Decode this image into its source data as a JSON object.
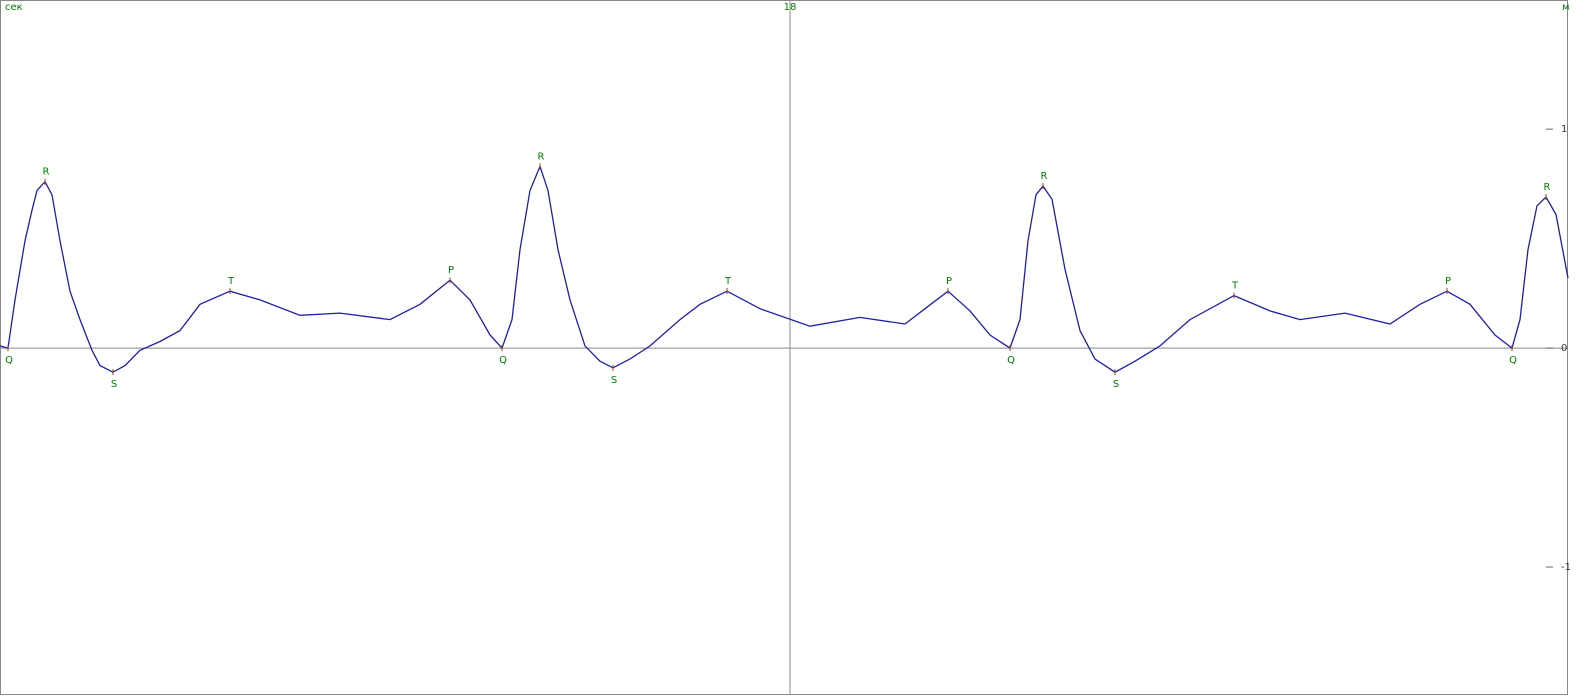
{
  "chart_data": {
    "type": "line",
    "x_label": "сек",
    "y_label": "м",
    "xlim": [
      10.1,
      25.78
    ],
    "ylim": [
      -1.58,
      1.59
    ],
    "xticks": [
      18
    ],
    "yticks": [
      1,
      0,
      -1
    ],
    "series": [
      {
        "color": "#1f1fa8",
        "x": [
          10.1,
          10.18,
          10.25,
          10.35,
          10.42,
          10.47,
          10.55,
          10.62,
          10.7,
          10.8,
          10.9,
          11.02,
          11.1,
          11.23,
          11.35,
          11.5,
          11.7,
          11.9,
          12.1,
          12.4,
          12.7,
          13.1,
          13.5,
          14.0,
          14.3,
          14.6,
          14.8,
          15.0,
          15.12,
          15.22,
          15.3,
          15.4,
          15.5,
          15.58,
          15.68,
          15.8,
          15.95,
          16.1,
          16.23,
          16.4,
          16.6,
          16.9,
          17.1,
          17.37,
          17.7,
          18.2,
          18.7,
          19.15,
          19.35,
          19.58,
          19.8,
          20.0,
          20.2,
          20.3,
          20.38,
          20.46,
          20.53,
          20.62,
          20.75,
          20.9,
          21.05,
          21.25,
          21.45,
          21.7,
          22.0,
          22.44,
          22.8,
          23.1,
          23.55,
          24.0,
          24.3,
          24.57,
          24.8,
          25.05,
          25.22,
          25.3,
          25.38,
          25.47,
          25.56,
          25.66,
          25.78
        ],
        "values": [
          0.01,
          0,
          0.22,
          0.49,
          0.63,
          0.72,
          0.76,
          0.7,
          0.49,
          0.26,
          0.13,
          -0.01,
          -0.08,
          -0.11,
          -0.08,
          -0.01,
          0.03,
          0.08,
          0.2,
          0.26,
          0.22,
          0.15,
          0.16,
          0.13,
          0.2,
          0.31,
          0.22,
          0.06,
          0,
          0.13,
          0.45,
          0.72,
          0.83,
          0.72,
          0.45,
          0.22,
          0.01,
          -0.06,
          -0.09,
          -0.05,
          0.01,
          0.13,
          0.2,
          0.26,
          0.18,
          0.1,
          0.14,
          0.11,
          0.18,
          0.26,
          0.17,
          0.06,
          0,
          0.13,
          0.49,
          0.7,
          0.74,
          0.68,
          0.36,
          0.08,
          -0.05,
          -0.11,
          -0.06,
          0.01,
          0.13,
          0.24,
          0.17,
          0.13,
          0.16,
          0.11,
          0.2,
          0.26,
          0.2,
          0.06,
          0,
          0.13,
          0.45,
          0.65,
          0.69,
          0.61,
          0.32
        ]
      }
    ],
    "annotations": [
      {
        "text": "Q",
        "x": 10.18,
        "y": 0
      },
      {
        "text": "R",
        "x": 10.55,
        "y": 0.76
      },
      {
        "text": "S",
        "x": 11.23,
        "y": -0.11
      },
      {
        "text": "T",
        "x": 12.4,
        "y": 0.26
      },
      {
        "text": "P",
        "x": 14.6,
        "y": 0.31
      },
      {
        "text": "Q",
        "x": 15.12,
        "y": 0
      },
      {
        "text": "R",
        "x": 15.5,
        "y": 0.83
      },
      {
        "text": "S",
        "x": 16.23,
        "y": -0.09
      },
      {
        "text": "T",
        "x": 17.37,
        "y": 0.26
      },
      {
        "text": "P",
        "x": 19.58,
        "y": 0.26
      },
      {
        "text": "Q",
        "x": 20.2,
        "y": 0
      },
      {
        "text": "R",
        "x": 20.53,
        "y": 0.74
      },
      {
        "text": "S",
        "x": 21.25,
        "y": -0.11
      },
      {
        "text": "T",
        "x": 22.44,
        "y": 0.24
      },
      {
        "text": "P",
        "x": 24.57,
        "y": 0.26
      },
      {
        "text": "Q",
        "x": 25.22,
        "y": 0
      },
      {
        "text": "R",
        "x": 25.56,
        "y": 0.69
      }
    ]
  }
}
